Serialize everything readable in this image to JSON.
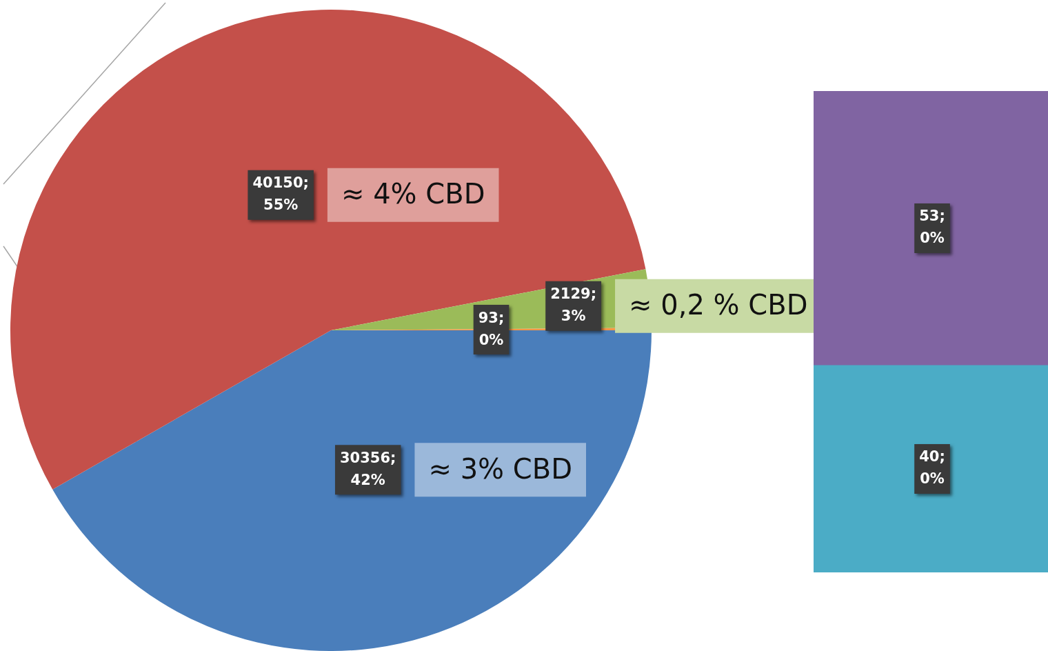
{
  "chart_data": [
    {
      "type": "pie",
      "categories": [
        null,
        null,
        null,
        null
      ],
      "values": [
        30356,
        40150,
        2129,
        93
      ],
      "colors": [
        "#4a7ebb",
        "#c4504a",
        "#9bbb59",
        "#f79646"
      ],
      "value_labels": [
        "30356;\n42%",
        "40150;\n55%",
        "2129;\n3%",
        "93;\n0%"
      ],
      "annotations": [
        "≈ 3% CBD",
        "≈ 4% CBD",
        "≈ 0,2 % CBD"
      ],
      "legend": false
    },
    {
      "type": "bar",
      "stacked": true,
      "categories": [
        null
      ],
      "series": [
        {
          "color": "#4bacc6",
          "values": [
            40
          ],
          "value_labels": [
            "40;\n0%"
          ]
        },
        {
          "color": "#8064a2",
          "values": [
            53
          ],
          "value_labels": [
            "53;\n0%"
          ]
        }
      ],
      "legend": false
    }
  ]
}
